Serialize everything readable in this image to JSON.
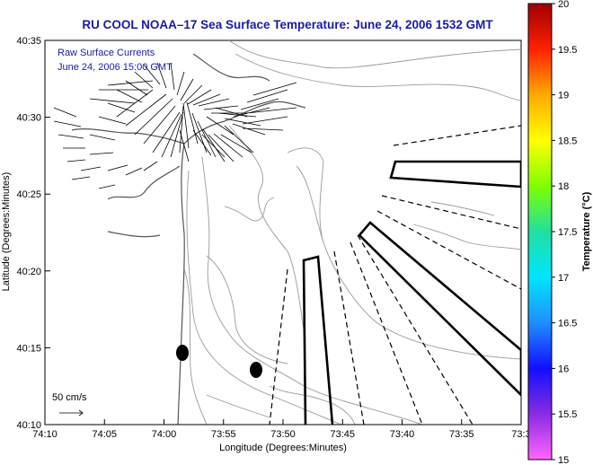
{
  "title": "RU COOL  NOAA–17  Sea Surface Temperature:  June 24, 2006 1532 GMT",
  "legend": {
    "line1": "Raw Surface Currents",
    "line2": "June 24, 2006 15:00 GMT",
    "scale_label": "50 cm/s"
  },
  "axes": {
    "xlabel": "Longitude (Degrees:Minutes)",
    "ylabel": "Latitude (Degrees:Minutes)",
    "xticks": [
      "74:10",
      "74:05",
      "74:00",
      "73:55",
      "73:50",
      "73:45",
      "73:40",
      "73:35",
      "73:3"
    ],
    "yticks": [
      "40:35",
      "40:30",
      "40:25",
      "40:20",
      "40:15",
      "40:10"
    ]
  },
  "colorbar": {
    "label": "Temperature (°C)",
    "ticks": [
      "20",
      "19.5",
      "19",
      "18.5",
      "18",
      "17.5",
      "17",
      "16.5",
      "16",
      "15.5",
      "15"
    ],
    "range": [
      15,
      20
    ]
  }
}
